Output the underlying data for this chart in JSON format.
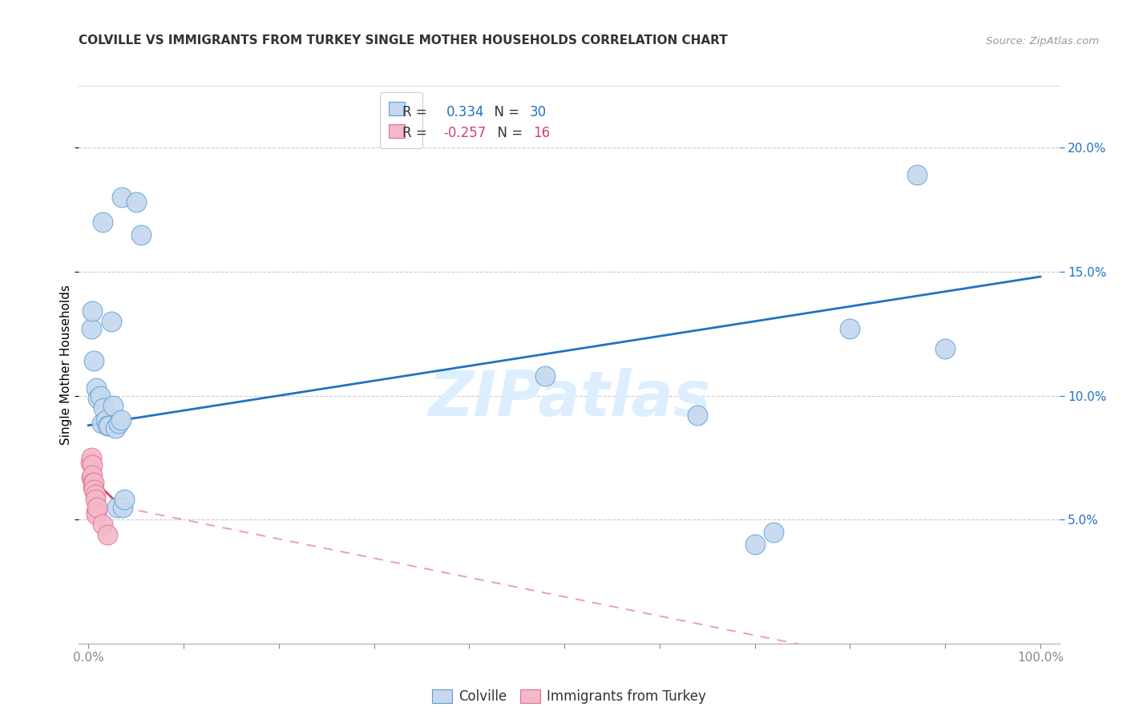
{
  "title": "COLVILLE VS IMMIGRANTS FROM TURKEY SINGLE MOTHER HOUSEHOLDS CORRELATION CHART",
  "source": "Source: ZipAtlas.com",
  "ylabel": "Single Mother Households",
  "xlabel_ticks": [
    "0.0%",
    "",
    "",
    "",
    "",
    "",
    "",
    "",
    "",
    "",
    "100.0%"
  ],
  "ylabel_ticks_right": [
    "5.0%",
    "10.0%",
    "15.0%",
    "20.0%"
  ],
  "legend_line1_r": "0.334",
  "legend_line1_n": "30",
  "legend_line2_r": "-0.257",
  "legend_line2_n": "16",
  "blue_color": "#c5d8ee",
  "pink_color": "#f4b8c8",
  "blue_edge_color": "#5a9fd4",
  "pink_edge_color": "#e07090",
  "blue_line_color": "#2272c3",
  "pink_line_color": "#d44070",
  "pink_dashed_color": "#e8a0b8",
  "axis_label_color": "#2272c3",
  "watermark": "ZIPatlas",
  "blue_points": [
    [
      0.015,
      0.17
    ],
    [
      0.035,
      0.18
    ],
    [
      0.05,
      0.178
    ],
    [
      0.055,
      0.165
    ],
    [
      0.003,
      0.127
    ],
    [
      0.004,
      0.134
    ],
    [
      0.006,
      0.114
    ],
    [
      0.008,
      0.103
    ],
    [
      0.01,
      0.099
    ],
    [
      0.012,
      0.1
    ],
    [
      0.014,
      0.089
    ],
    [
      0.016,
      0.095
    ],
    [
      0.018,
      0.09
    ],
    [
      0.02,
      0.088
    ],
    [
      0.022,
      0.088
    ],
    [
      0.024,
      0.13
    ],
    [
      0.026,
      0.096
    ],
    [
      0.028,
      0.087
    ],
    [
      0.03,
      0.055
    ],
    [
      0.032,
      0.089
    ],
    [
      0.034,
      0.09
    ],
    [
      0.036,
      0.055
    ],
    [
      0.038,
      0.058
    ],
    [
      0.48,
      0.108
    ],
    [
      0.64,
      0.092
    ],
    [
      0.7,
      0.04
    ],
    [
      0.72,
      0.045
    ],
    [
      0.8,
      0.127
    ],
    [
      0.87,
      0.189
    ],
    [
      0.9,
      0.119
    ]
  ],
  "pink_points": [
    [
      0.002,
      0.073
    ],
    [
      0.003,
      0.067
    ],
    [
      0.003,
      0.075
    ],
    [
      0.004,
      0.072
    ],
    [
      0.004,
      0.068
    ],
    [
      0.005,
      0.065
    ],
    [
      0.005,
      0.063
    ],
    [
      0.006,
      0.065
    ],
    [
      0.006,
      0.062
    ],
    [
      0.007,
      0.06
    ],
    [
      0.007,
      0.058
    ],
    [
      0.008,
      0.053
    ],
    [
      0.008,
      0.052
    ],
    [
      0.009,
      0.055
    ],
    [
      0.015,
      0.048
    ],
    [
      0.02,
      0.044
    ]
  ],
  "blue_trendline": [
    [
      0.0,
      0.088
    ],
    [
      1.0,
      0.148
    ]
  ],
  "pink_trendline_solid": [
    [
      0.0,
      0.068
    ],
    [
      0.035,
      0.055
    ]
  ],
  "pink_trendline_dashed": [
    [
      0.035,
      0.055
    ],
    [
      1.0,
      -0.02
    ]
  ],
  "xlim": [
    -0.01,
    1.02
  ],
  "ylim": [
    0.0,
    0.225
  ],
  "x_tick_vals": [
    0.0,
    0.1,
    0.2,
    0.3,
    0.4,
    0.5,
    0.6,
    0.7,
    0.8,
    0.9,
    1.0
  ],
  "y_tick_vals": [
    0.05,
    0.1,
    0.15,
    0.2
  ]
}
